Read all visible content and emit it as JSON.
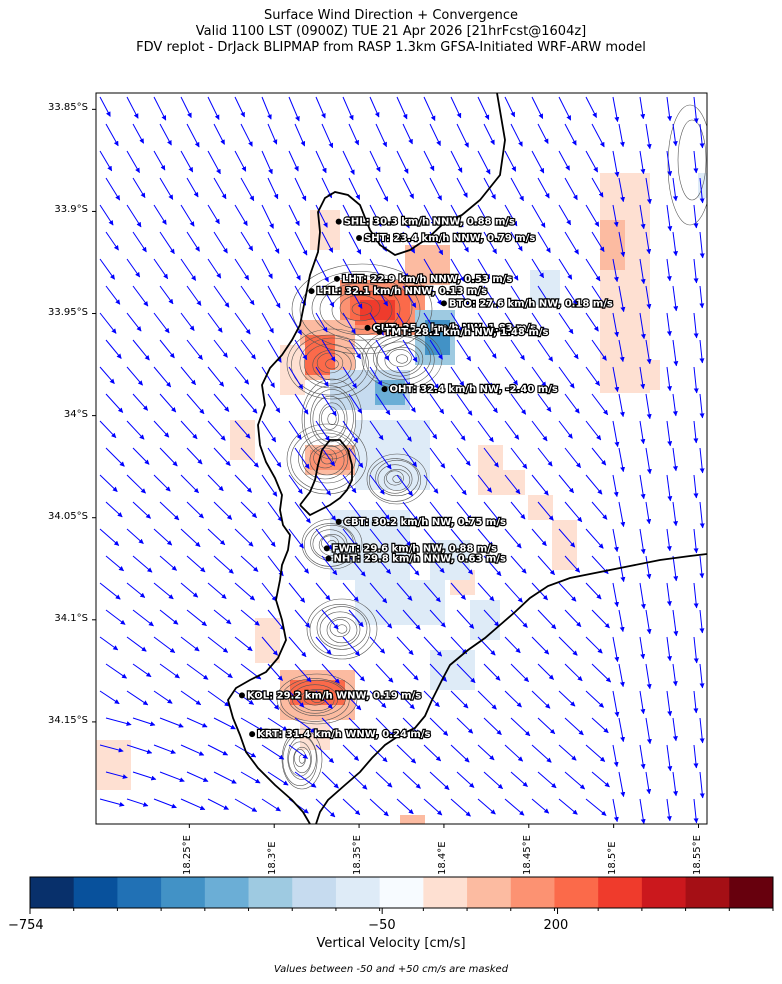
{
  "title": {
    "line1": "Surface Wind Direction + Convergence",
    "line2": "Valid 1100 LST (0900Z) TUE 21 Apr 2026 [21hrFcst@1604z]",
    "line3": "FDV replot - DrJack BLIPMAP from RASP 1.3km GFSA-Initiated WRF-ARW model"
  },
  "axes": {
    "lat_labels": [
      "33.85°S",
      "33.9°S",
      "33.95°S",
      "34°S",
      "34.05°S",
      "34.1°S",
      "34.15°S"
    ],
    "lon_labels": [
      "18.25°E",
      "18.3°E",
      "18.35°E",
      "18.4°E",
      "18.45°E",
      "18.5°E",
      "18.55°E"
    ],
    "lon_range": [
      18.195,
      18.555
    ],
    "lat_range": [
      -34.2,
      -33.842
    ]
  },
  "stations": [
    {
      "code": "SHL",
      "label": "SHL: 30.3 km/h NNW, 0.88 m/s",
      "lon": 18.338,
      "lat": -33.905
    },
    {
      "code": "SHT",
      "label": "SHT: 23.4 km/h NNW, 0.79 m/s",
      "lon": 18.35,
      "lat": -33.913
    },
    {
      "code": "LHT",
      "label": "LHT: 22.9 km/h NNW, 0.53 m/s",
      "lon": 18.337,
      "lat": -33.933
    },
    {
      "code": "LHL",
      "label": "LHL: 32.1 km/h NNW, 0.13 m/s",
      "lon": 18.322,
      "lat": -33.939
    },
    {
      "code": "BTO",
      "label": "BTO: 27.6 km/h NW, 0.18 m/s",
      "lon": 18.4,
      "lat": -33.945
    },
    {
      "code": "GUT",
      "label": "GUT: 25.0 km/h NW, 1.83 m/s",
      "lon": 18.355,
      "lat": -33.957
    },
    {
      "code": "TMT",
      "label": "TMT: 28.1 km/h NW, 1.48 m/s",
      "lon": 18.362,
      "lat": -33.959
    },
    {
      "code": "OHT",
      "label": "OHT: 32.4 km/h NW, -2.40 m/s",
      "lon": 18.365,
      "lat": -33.987
    },
    {
      "code": "CBT",
      "label": "CBT: 30.2 km/h NW, 0.75 m/s",
      "lon": 18.338,
      "lat": -34.052
    },
    {
      "code": "FWT",
      "label": "FWT: 29.6 km/h NW, 0.88 m/s",
      "lon": 18.331,
      "lat": -34.065
    },
    {
      "code": "NHT",
      "label": "NHT: 29.8 km/h NNW, 0.63 m/s",
      "lon": 18.332,
      "lat": -34.07
    },
    {
      "code": "KOL",
      "label": "KOL: 29.2 km/h WNW, 0.19 m/s",
      "lon": 18.281,
      "lat": -34.137
    },
    {
      "code": "KRT",
      "label": "KRT: 31.4 km/h WNW, 0.24 m/s",
      "lon": 18.287,
      "lat": -34.156
    }
  ],
  "colorbar": {
    "label": "Vertical Velocity [cm/s]",
    "ticks": [
      "−754",
      "−50",
      "200"
    ],
    "tick_fractions": [
      0,
      0.474,
      0.71
    ],
    "colors": [
      "#08306b",
      "#08519c",
      "#2171b5",
      "#4292c6",
      "#6baed6",
      "#9ecae1",
      "#c6dbef",
      "#deebf7",
      "#f7fbff",
      "#fee0d2",
      "#fcbba1",
      "#fc9272",
      "#fb6a4a",
      "#ef3b2c",
      "#cb181d",
      "#a50f15",
      "#67000d"
    ],
    "note": "Values between -50 and +50 cm/s are masked"
  },
  "colors": {
    "wind_vectors": "#0000ff",
    "coastline": "#000000",
    "contours": "#555555"
  }
}
